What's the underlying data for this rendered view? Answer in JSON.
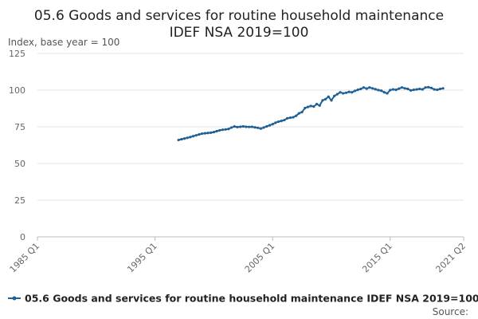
{
  "chart_data": {
    "type": "line",
    "title": "05.6 Goods and services for routine household maintenance",
    "subtitle": "IDEF NSA 2019=100",
    "ylabel": "Index, base year = 100",
    "xlabel": "",
    "ylim": [
      0,
      125
    ],
    "y_ticks": [
      0,
      25,
      50,
      75,
      100,
      125
    ],
    "x_ticks": [
      "1985 Q1",
      "1995 Q1",
      "2005 Q1",
      "2015 Q1",
      "2021 Q2"
    ],
    "grid": "horizontal",
    "legend_position": "bottom",
    "series_color": "#206095",
    "source_label": "Source:",
    "series": [
      {
        "name": "05.6 Goods and services for routine household maintenance IDEF NSA 2019=100",
        "points": [
          [
            "1997 Q1",
            66.0
          ],
          [
            "1997 Q2",
            66.5
          ],
          [
            "1997 Q3",
            67.0
          ],
          [
            "1997 Q4",
            67.5
          ],
          [
            "1998 Q1",
            68.0
          ],
          [
            "1998 Q2",
            68.6
          ],
          [
            "1998 Q3",
            69.2
          ],
          [
            "1998 Q4",
            69.8
          ],
          [
            "1999 Q1",
            70.3
          ],
          [
            "1999 Q2",
            70.6
          ],
          [
            "1999 Q3",
            70.8
          ],
          [
            "1999 Q4",
            71.0
          ],
          [
            "2000 Q1",
            71.4
          ],
          [
            "2000 Q2",
            72.0
          ],
          [
            "2000 Q3",
            72.6
          ],
          [
            "2000 Q4",
            73.0
          ],
          [
            "2001 Q1",
            73.2
          ],
          [
            "2001 Q2",
            73.5
          ],
          [
            "2001 Q3",
            74.5
          ],
          [
            "2001 Q4",
            75.2
          ],
          [
            "2002 Q1",
            74.8
          ],
          [
            "2002 Q2",
            75.0
          ],
          [
            "2002 Q3",
            75.3
          ],
          [
            "2002 Q4",
            75.0
          ],
          [
            "2003 Q1",
            74.9
          ],
          [
            "2003 Q2",
            75.0
          ],
          [
            "2003 Q3",
            74.6
          ],
          [
            "2003 Q4",
            74.3
          ],
          [
            "2004 Q1",
            73.8
          ],
          [
            "2004 Q2",
            74.5
          ],
          [
            "2004 Q3",
            75.3
          ],
          [
            "2004 Q4",
            76.0
          ],
          [
            "2005 Q1",
            76.8
          ],
          [
            "2005 Q2",
            77.8
          ],
          [
            "2005 Q3",
            78.5
          ],
          [
            "2005 Q4",
            79.0
          ],
          [
            "2006 Q1",
            79.6
          ],
          [
            "2006 Q2",
            80.8
          ],
          [
            "2006 Q3",
            81.2
          ],
          [
            "2006 Q4",
            81.5
          ],
          [
            "2007 Q1",
            82.5
          ],
          [
            "2007 Q2",
            84.2
          ],
          [
            "2007 Q3",
            85.0
          ],
          [
            "2007 Q4",
            87.8
          ],
          [
            "2008 Q1",
            88.5
          ],
          [
            "2008 Q2",
            89.2
          ],
          [
            "2008 Q3",
            88.8
          ],
          [
            "2008 Q4",
            90.5
          ],
          [
            "2009 Q1",
            89.5
          ],
          [
            "2009 Q2",
            93.0
          ],
          [
            "2009 Q3",
            93.8
          ],
          [
            "2009 Q4",
            95.5
          ],
          [
            "2010 Q1",
            93.0
          ],
          [
            "2010 Q2",
            96.0
          ],
          [
            "2010 Q3",
            97.2
          ],
          [
            "2010 Q4",
            98.5
          ],
          [
            "2011 Q1",
            97.8
          ],
          [
            "2011 Q2",
            98.2
          ],
          [
            "2011 Q3",
            98.8
          ],
          [
            "2011 Q4",
            98.5
          ],
          [
            "2012 Q1",
            99.5
          ],
          [
            "2012 Q2",
            100.2
          ],
          [
            "2012 Q3",
            100.8
          ],
          [
            "2012 Q4",
            101.8
          ],
          [
            "2013 Q1",
            101.0
          ],
          [
            "2013 Q2",
            101.8
          ],
          [
            "2013 Q3",
            101.2
          ],
          [
            "2013 Q4",
            100.6
          ],
          [
            "2014 Q1",
            100.0
          ],
          [
            "2014 Q2",
            99.6
          ],
          [
            "2014 Q3",
            98.5
          ],
          [
            "2014 Q4",
            97.8
          ],
          [
            "2015 Q1",
            100.0
          ],
          [
            "2015 Q2",
            100.5
          ],
          [
            "2015 Q3",
            100.2
          ],
          [
            "2015 Q4",
            101.0
          ],
          [
            "2016 Q1",
            101.8
          ],
          [
            "2016 Q2",
            101.2
          ],
          [
            "2016 Q3",
            100.8
          ],
          [
            "2016 Q4",
            99.8
          ],
          [
            "2017 Q1",
            100.2
          ],
          [
            "2017 Q2",
            100.5
          ],
          [
            "2017 Q3",
            100.8
          ],
          [
            "2017 Q4",
            100.5
          ],
          [
            "2018 Q1",
            101.8
          ],
          [
            "2018 Q2",
            102.0
          ],
          [
            "2018 Q3",
            101.5
          ],
          [
            "2018 Q4",
            100.5
          ],
          [
            "2019 Q1",
            100.2
          ],
          [
            "2019 Q2",
            100.8
          ],
          [
            "2019 Q3",
            101.2
          ]
        ]
      }
    ]
  }
}
